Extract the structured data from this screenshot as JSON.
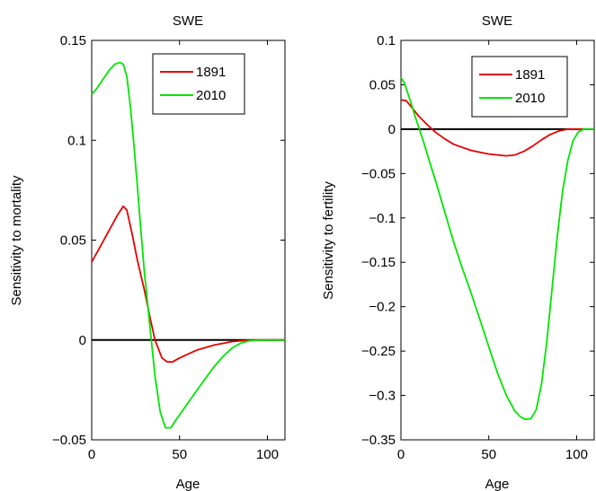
{
  "chart_data": [
    {
      "type": "line",
      "title": "SWE",
      "xlabel": "Age",
      "ylabel": "Sensitivity to mortality",
      "xlim": [
        0,
        110
      ],
      "ylim": [
        -0.05,
        0.15
      ],
      "xticks": [
        0,
        50,
        100
      ],
      "xtick_labels": [
        "0",
        "50",
        "100"
      ],
      "yticks": [
        -0.05,
        0,
        0.05,
        0.1,
        0.15
      ],
      "ytick_labels": [
        "−0.05",
        "0",
        "0.05",
        "0.1",
        "0.15"
      ],
      "legend": "top-right",
      "grid": false,
      "reference_line": 0,
      "series": [
        {
          "name": "1891",
          "color": "#e60000",
          "x": [
            0,
            5,
            10,
            15,
            18,
            20,
            23,
            26,
            30,
            33,
            36,
            40,
            43,
            46,
            50,
            55,
            60,
            70,
            80,
            90,
            100,
            110
          ],
          "y": [
            0.039,
            0.047,
            0.055,
            0.063,
            0.067,
            0.065,
            0.053,
            0.04,
            0.025,
            0.012,
            0.0,
            -0.009,
            -0.011,
            -0.011,
            -0.009,
            -0.007,
            -0.005,
            -0.0025,
            -0.0008,
            0.0,
            0.0,
            0.0
          ]
        },
        {
          "name": "2010",
          "color": "#00e600",
          "x": [
            0,
            3,
            6,
            10,
            13,
            16,
            18,
            20,
            22,
            24,
            26,
            28,
            30,
            33,
            36,
            39,
            42,
            45,
            48,
            52,
            56,
            60,
            65,
            70,
            75,
            80,
            85,
            90,
            95,
            100,
            110
          ],
          "y": [
            0.123,
            0.126,
            0.13,
            0.135,
            0.138,
            0.139,
            0.138,
            0.132,
            0.117,
            0.098,
            0.077,
            0.055,
            0.034,
            0.008,
            -0.018,
            -0.036,
            -0.044,
            -0.044,
            -0.04,
            -0.035,
            -0.03,
            -0.025,
            -0.019,
            -0.013,
            -0.008,
            -0.004,
            -0.0015,
            -0.0004,
            0.0,
            0.0,
            0.0
          ]
        }
      ]
    },
    {
      "type": "line",
      "title": "SWE",
      "xlabel": "Age",
      "ylabel": "Sensitivity to fertility",
      "xlim": [
        0,
        110
      ],
      "ylim": [
        -0.35,
        0.1
      ],
      "xticks": [
        0,
        50,
        100
      ],
      "xtick_labels": [
        "0",
        "50",
        "100"
      ],
      "yticks": [
        -0.35,
        -0.3,
        -0.25,
        -0.2,
        -0.15,
        -0.1,
        -0.05,
        0,
        0.05,
        0.1
      ],
      "ytick_labels": [
        "−0.35",
        "−0.3",
        "−0.25",
        "−0.2",
        "−0.15",
        "−0.1",
        "−0.05",
        "0",
        "0.05",
        "0.1"
      ],
      "legend": "top-right",
      "grid": false,
      "reference_line": 0,
      "series": [
        {
          "name": "1891",
          "color": "#e60000",
          "x": [
            0,
            3,
            6,
            10,
            15,
            20,
            25,
            30,
            40,
            50,
            55,
            60,
            65,
            70,
            75,
            80,
            85,
            90,
            95,
            100,
            105,
            110
          ],
          "y": [
            0.033,
            0.032,
            0.025,
            0.015,
            0.005,
            -0.004,
            -0.011,
            -0.017,
            -0.024,
            -0.028,
            -0.029,
            -0.03,
            -0.029,
            -0.025,
            -0.019,
            -0.012,
            -0.006,
            -0.002,
            0.0,
            0.0,
            0.0,
            0.0
          ]
        },
        {
          "name": "2010",
          "color": "#00e600",
          "x": [
            0,
            2,
            4,
            6,
            8,
            10,
            13,
            16,
            20,
            25,
            30,
            35,
            40,
            45,
            50,
            55,
            60,
            65,
            68,
            71,
            74,
            77,
            80,
            83,
            86,
            89,
            92,
            95,
            98,
            101,
            104,
            107,
            110
          ],
          "y": [
            0.058,
            0.052,
            0.04,
            0.028,
            0.015,
            0.003,
            -0.015,
            -0.035,
            -0.06,
            -0.094,
            -0.127,
            -0.157,
            -0.185,
            -0.215,
            -0.245,
            -0.275,
            -0.3,
            -0.318,
            -0.324,
            -0.327,
            -0.326,
            -0.316,
            -0.287,
            -0.24,
            -0.18,
            -0.12,
            -0.07,
            -0.035,
            -0.013,
            -0.003,
            0.0,
            0.0,
            0.0
          ]
        }
      ]
    }
  ]
}
